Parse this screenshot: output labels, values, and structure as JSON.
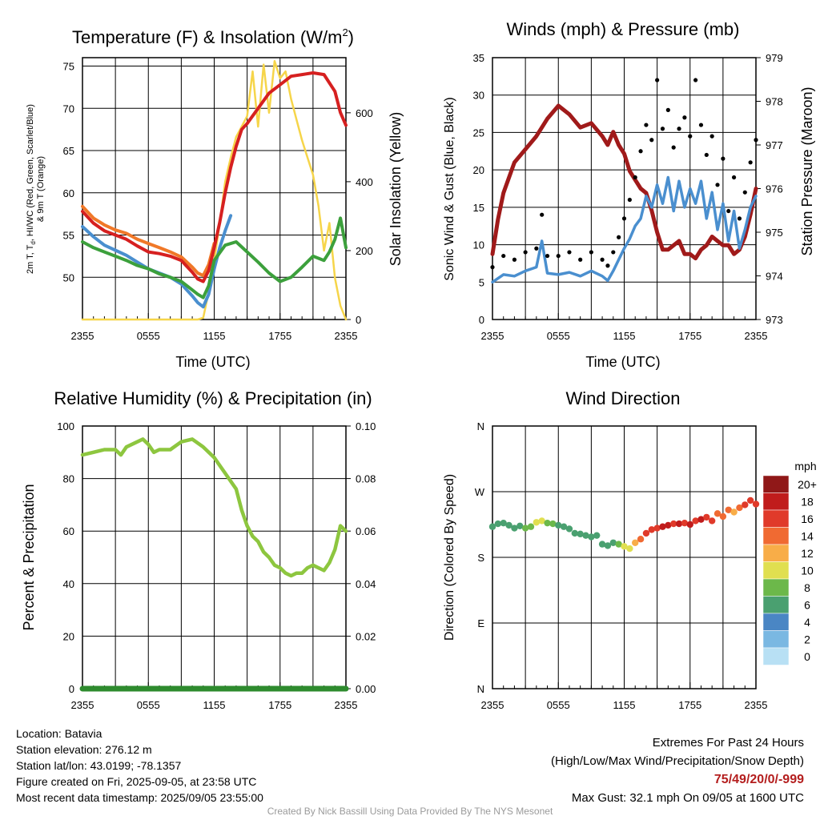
{
  "panels": {
    "temp": {
      "title": "Temperature (F) & Insolation (W/m",
      "title_sup": "2",
      "title_close": ")",
      "ylabel_line1": "2m T, T",
      "ylabel_sub": "d",
      "ylabel_line1_rest": ", HI/WC (Red, Green, Scarlet/Blue)",
      "ylabel_line2": "& 9m T (Orange)",
      "y2label": "Solar Insolation (Yellow)",
      "xlabel": "Time (UTC)"
    },
    "wind": {
      "title": "Winds (mph) & Pressure (mb)",
      "ylabel": "Sonic Wind & Gust (Blue, Black)",
      "y2label": "Station Pressure (Maroon)",
      "xlabel": "Time (UTC)"
    },
    "rh": {
      "title": "Relative Humidity (%) & Precipitation (in)",
      "ylabel": "Percent & Precipitation"
    },
    "dir": {
      "title": "Wind Direction",
      "ylabel": "Direction (Colored By Speed)",
      "legend_title": "mph"
    }
  },
  "info": {
    "location": "Location: Batavia",
    "elevation": "Station elevation: 276.12 m",
    "latlon": "Station lat/lon: 43.0199; -78.1357",
    "created": "Figure created on Fri, 2025-09-05, at 23:58 UTC",
    "recent": "Most recent data timestamp: 2025/09/05 23:55:00",
    "extremes_title": "Extremes For Past 24 Hours",
    "extremes_desc": "(High/Low/Max Wind/Precipitation/Snow Depth)",
    "extremes_values": "75/49/20/0/-999",
    "max_gust": "Max Gust: 32.1 mph On 09/05 at 1600 UTC",
    "credit": "Created By Nick Bassill Using Data Provided By The NYS Mesonet"
  },
  "chart_data": [
    {
      "type": "line",
      "title": "Temperature (F) & Insolation (W/m2)",
      "xlabel": "Time (UTC)",
      "ylabel": "2m T, Td, HI/WC (Red, Green, Scarlet/Blue) & 9m T (Orange)",
      "y2label": "Solar Insolation (Yellow)",
      "x_ticks": [
        "2355",
        "0555",
        "1155",
        "1755",
        "2355"
      ],
      "x_hours": [
        0,
        6,
        12,
        18,
        24
      ],
      "y_ticks": [
        50,
        55,
        60,
        65,
        70,
        75
      ],
      "ylim": [
        45,
        76
      ],
      "y2_ticks": [
        0,
        200,
        400,
        600
      ],
      "y2lim": [
        0,
        760
      ],
      "grid": true,
      "series": [
        {
          "name": "2m T",
          "color": "#d62020",
          "axis": "y",
          "x": [
            0,
            1,
            2,
            3,
            4,
            5,
            6,
            7,
            8,
            9,
            10,
            10.5,
            11,
            11.5,
            12,
            12.5,
            13,
            13.5,
            14,
            14.5,
            15,
            16,
            17,
            18,
            19,
            20,
            21,
            22,
            23,
            23.5,
            24
          ],
          "y": [
            57.8,
            56.4,
            55.5,
            55.0,
            54.5,
            53.7,
            53.0,
            52.8,
            52.5,
            52.0,
            50.6,
            49.8,
            49.5,
            50.8,
            53.5,
            56.5,
            60.0,
            63.0,
            65.5,
            67.5,
            68.2,
            70.0,
            71.8,
            72.8,
            73.8,
            74.0,
            74.2,
            74.0,
            72.0,
            69.5,
            68.0
          ]
        },
        {
          "name": "9m T",
          "color": "#f07828",
          "axis": "y",
          "x": [
            0,
            1,
            2,
            3,
            4,
            5,
            6,
            7,
            8,
            9,
            10,
            10.5,
            11,
            11.5,
            12
          ],
          "y": [
            58.4,
            57.0,
            56.2,
            55.6,
            55.2,
            54.5,
            54.0,
            53.5,
            53.0,
            52.4,
            51.2,
            50.5,
            50.2,
            51.5,
            54.0
          ]
        },
        {
          "name": "HI/WC",
          "color": "#4a8fcf",
          "axis": "y",
          "x": [
            0,
            1,
            2,
            3,
            4,
            5,
            6,
            7,
            8,
            9,
            10,
            10.5,
            11,
            11.5,
            12,
            12.5,
            13,
            13.5
          ],
          "y": [
            56.0,
            54.8,
            53.8,
            53.2,
            52.6,
            51.8,
            51.0,
            50.5,
            50.0,
            49.2,
            47.8,
            47.0,
            46.5,
            48.0,
            51.0,
            53.5,
            55.5,
            57.3
          ]
        },
        {
          "name": "Td",
          "color": "#3ca03c",
          "axis": "y",
          "x": [
            0,
            1,
            2,
            3,
            4,
            5,
            6,
            7,
            8,
            9,
            10,
            10.5,
            11,
            11.5,
            12,
            13,
            14,
            15,
            16,
            17,
            18,
            19,
            20,
            21,
            22,
            22.5,
            23,
            23.5,
            24
          ],
          "y": [
            54.2,
            53.5,
            53.0,
            52.5,
            52.0,
            51.4,
            51.0,
            50.4,
            50.0,
            49.5,
            48.5,
            48.0,
            47.6,
            49.0,
            52.0,
            53.8,
            54.2,
            53.0,
            51.8,
            50.5,
            49.5,
            50.0,
            51.2,
            52.5,
            52.0,
            53.0,
            54.5,
            57.0,
            53.5
          ]
        },
        {
          "name": "Solar Insolation",
          "color": "#f6d54a",
          "axis": "y2",
          "x": [
            0,
            1,
            2,
            3,
            4,
            5,
            6,
            7,
            8,
            9,
            10,
            10.5,
            11,
            11.5,
            12,
            12.5,
            13,
            13.5,
            14,
            14.5,
            15,
            15.5,
            16,
            16.5,
            17,
            17.5,
            18,
            18.5,
            19,
            19.5,
            20,
            20.5,
            21,
            21.5,
            22,
            22.5,
            23,
            23.5,
            24
          ],
          "y": [
            0,
            0,
            0,
            0,
            0,
            0,
            0,
            0,
            0,
            0,
            0,
            0,
            5,
            80,
            170,
            280,
            400,
            470,
            530,
            560,
            590,
            720,
            560,
            740,
            600,
            750,
            700,
            720,
            640,
            580,
            520,
            470,
            420,
            330,
            200,
            280,
            120,
            40,
            0
          ]
        }
      ]
    },
    {
      "type": "line",
      "title": "Winds (mph) & Pressure (mb)",
      "xlabel": "Time (UTC)",
      "ylabel": "Sonic Wind & Gust (Blue, Black)",
      "y2label": "Station Pressure (Maroon)",
      "x_ticks": [
        "2355",
        "0555",
        "1155",
        "1755",
        "2355"
      ],
      "x_hours": [
        0,
        6,
        12,
        18,
        24
      ],
      "y_ticks": [
        0,
        5,
        10,
        15,
        20,
        25,
        30,
        35
      ],
      "ylim": [
        0,
        35
      ],
      "y2_ticks": [
        973,
        974,
        975,
        976,
        977,
        978,
        979
      ],
      "y2lim": [
        973,
        979
      ],
      "grid": true,
      "series": [
        {
          "name": "Sonic Wind",
          "color": "#4a8fcf",
          "axis": "y",
          "x": [
            0,
            1,
            2,
            3,
            4,
            4.5,
            5,
            6,
            7,
            8,
            9,
            10,
            10.5,
            11,
            11.5,
            12,
            12.5,
            13,
            13.5,
            14,
            14.5,
            15,
            15.5,
            16,
            16.5,
            17,
            17.5,
            18,
            18.5,
            19,
            19.5,
            20,
            20.5,
            21,
            21.5,
            22,
            22.5,
            23,
            23.5,
            24
          ],
          "y": [
            5,
            6,
            5.8,
            6.5,
            7,
            10.5,
            6.2,
            6.0,
            6.3,
            5.8,
            6.5,
            5.8,
            5.2,
            6.5,
            8.0,
            9.5,
            10.8,
            12.5,
            13.5,
            16.5,
            15.0,
            18.0,
            15.5,
            19.0,
            14.5,
            18.5,
            15.0,
            17.5,
            15.5,
            18.5,
            13.5,
            17.0,
            12.0,
            15.5,
            10.5,
            14.5,
            9.5,
            12.0,
            15.0,
            16.5
          ]
        },
        {
          "name": "Gust",
          "color": "#000000",
          "axis": "y",
          "x": [
            0,
            1,
            2,
            3,
            4,
            4.5,
            5,
            6,
            7,
            8,
            9,
            10,
            10.5,
            11,
            11.5,
            12,
            12.5,
            13,
            13.5,
            14,
            14.5,
            15,
            15.5,
            16,
            16.5,
            17,
            17.5,
            18,
            18.5,
            19,
            19.5,
            20,
            20.5,
            21,
            21.5,
            22,
            22.5,
            23,
            23.5,
            24
          ],
          "y": [
            7,
            8.5,
            8.0,
            9.0,
            9.5,
            14.0,
            8.5,
            8.5,
            9.0,
            8.0,
            9.0,
            8.0,
            7.2,
            9.0,
            11.0,
            13.5,
            16.0,
            19.0,
            22.5,
            26.0,
            24.0,
            32.0,
            25.5,
            28.0,
            23.0,
            25.5,
            27.0,
            24.5,
            32.0,
            26.0,
            22.0,
            24.5,
            18.0,
            21.5,
            14.5,
            19.0,
            13.5,
            17.0,
            21.0,
            24.0
          ]
        },
        {
          "name": "Station Pressure",
          "color": "#a01a1a",
          "axis": "y2",
          "x": [
            0,
            0.5,
            1,
            2,
            3,
            4,
            5,
            6,
            7,
            8,
            9,
            10,
            10.5,
            11,
            11.5,
            12,
            12.5,
            13,
            13.5,
            14,
            14.5,
            15,
            15.5,
            16,
            16.5,
            17,
            17.5,
            18,
            18.5,
            19,
            19.5,
            20,
            20.5,
            21,
            21.5,
            22,
            22.5,
            23,
            23.5,
            24
          ],
          "y": [
            974.5,
            975.3,
            975.9,
            976.6,
            976.9,
            977.2,
            977.6,
            977.9,
            977.7,
            977.4,
            977.5,
            977.2,
            977.0,
            977.3,
            977.0,
            976.8,
            976.4,
            976.2,
            976.0,
            975.9,
            975.5,
            975.0,
            974.6,
            974.6,
            974.7,
            974.8,
            974.5,
            974.5,
            974.4,
            974.6,
            974.7,
            974.9,
            974.8,
            974.7,
            974.7,
            974.5,
            974.6,
            974.9,
            975.4,
            976.0
          ]
        }
      ]
    },
    {
      "type": "line",
      "title": "Relative Humidity (%) & Precipitation (in)",
      "ylabel": "Percent & Precipitation",
      "x_ticks": [
        "2355",
        "0555",
        "1155",
        "1755",
        "2355"
      ],
      "x_hours": [
        0,
        6,
        12,
        18,
        24
      ],
      "y_ticks": [
        0,
        20,
        40,
        60,
        80,
        100
      ],
      "ylim": [
        0,
        100
      ],
      "y2_ticks": [
        "0.00",
        "0.02",
        "0.04",
        "0.06",
        "0.08",
        "0.10"
      ],
      "y2lim": [
        0,
        0.1
      ],
      "grid": true,
      "series": [
        {
          "name": "Relative Humidity",
          "color": "#8dc63f",
          "axis": "y",
          "x": [
            0,
            1,
            2,
            3,
            3.5,
            4,
            5,
            5.5,
            6,
            6.5,
            7,
            8,
            9,
            10,
            11,
            11.5,
            12,
            13,
            14,
            14.5,
            15,
            15.5,
            16,
            16.5,
            17,
            17.5,
            18,
            18.5,
            19,
            19.5,
            20,
            20.5,
            21,
            21.5,
            22,
            22.5,
            23,
            23.5,
            24
          ],
          "y": [
            89,
            90,
            91,
            91,
            89,
            92,
            94,
            95,
            93,
            90,
            91,
            91,
            94,
            95,
            92,
            90,
            88,
            82,
            76,
            68,
            62,
            58,
            56,
            52,
            50,
            47,
            46,
            44,
            43,
            44,
            44,
            46,
            47,
            46,
            45,
            48,
            53,
            62,
            60
          ]
        },
        {
          "name": "Precipitation",
          "color": "#2e8b2e",
          "axis": "y2",
          "x": [
            0,
            24
          ],
          "y": [
            0,
            0
          ]
        }
      ]
    },
    {
      "type": "scatter",
      "title": "Wind Direction",
      "ylabel": "Direction (Colored By Speed)",
      "x_ticks": [
        "2355",
        "0555",
        "1155",
        "1755",
        "2355"
      ],
      "x_hours": [
        0,
        6,
        12,
        18,
        24
      ],
      "y_ticks": [
        "N",
        "E",
        "S",
        "W",
        "N"
      ],
      "y_degrees": [
        0,
        90,
        180,
        270,
        360
      ],
      "ylim": [
        0,
        360
      ],
      "grid": true,
      "colorbar": {
        "title": "mph",
        "labels": [
          "0",
          "2",
          "4",
          "6",
          "8",
          "10",
          "12",
          "14",
          "16",
          "18",
          "20+"
        ],
        "colors": [
          "#b8e0f4",
          "#7ab8e2",
          "#4a86c4",
          "#4aa070",
          "#6cb84a",
          "#e0df50",
          "#f8ad48",
          "#f06a32",
          "#e03a2a",
          "#c01c1c",
          "#901818"
        ]
      },
      "x": [
        0,
        0.5,
        1,
        1.5,
        2,
        2.5,
        3,
        3.5,
        4,
        4.5,
        5,
        5.5,
        6,
        6.5,
        7,
        7.5,
        8,
        8.5,
        9,
        9.5,
        10,
        10.5,
        11,
        11.5,
        12,
        12.5,
        13,
        13.5,
        14,
        14.5,
        15,
        15.5,
        16,
        16.5,
        17,
        17.5,
        18,
        18.5,
        19,
        19.5,
        20,
        20.5,
        21,
        21.5,
        22,
        22.5,
        23,
        23.5,
        24
      ],
      "y": [
        222,
        226,
        227,
        224,
        220,
        223,
        220,
        222,
        228,
        230,
        227,
        226,
        224,
        222,
        219,
        213,
        212,
        210,
        208,
        210,
        198,
        196,
        200,
        198,
        195,
        192,
        200,
        205,
        213,
        218,
        220,
        222,
        224,
        226,
        226,
        227,
        225,
        230,
        232,
        235,
        230,
        240,
        236,
        245,
        242,
        248,
        252,
        258,
        253
      ],
      "speed": [
        5,
        6,
        6,
        6,
        6,
        6,
        7,
        7,
        9,
        10,
        7,
        7,
        6,
        6,
        6,
        6,
        6,
        6,
        6,
        6,
        5,
        5,
        6,
        8,
        9,
        10,
        12,
        13,
        15,
        16,
        16,
        17,
        18,
        16,
        17,
        16,
        17,
        16,
        17,
        15,
        16,
        14,
        14,
        13,
        11,
        14,
        15,
        16,
        16
      ]
    }
  ]
}
